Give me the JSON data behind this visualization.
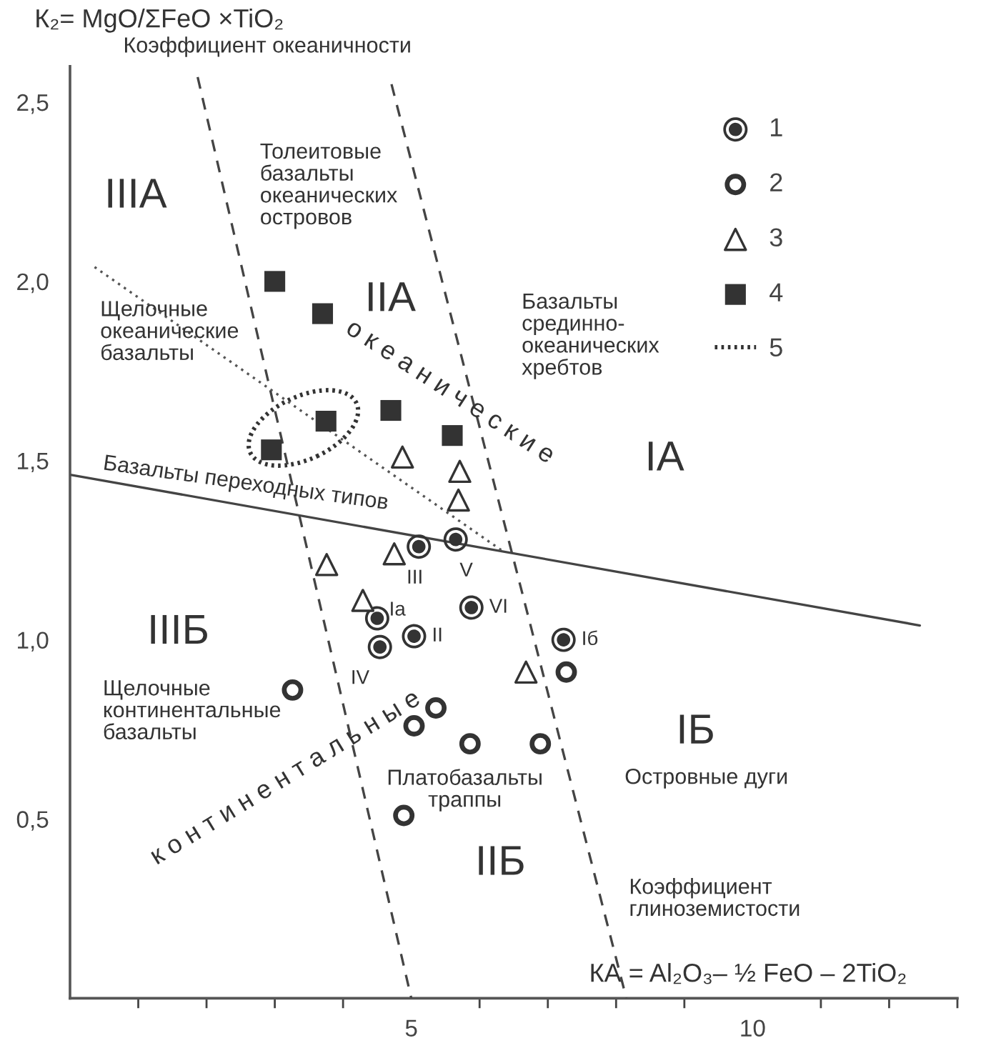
{
  "chart_data": {
    "type": "scatter",
    "ylabel": "К₂= MgO/ΣFeO ×TiO₂",
    "xlabel": "КА = Al₂O₃– ½ FeO – 2TiO₂",
    "xlim": [
      0,
      13
    ],
    "ylim": [
      0,
      2.6
    ],
    "xticks": [
      {
        "value": 1,
        "label": null
      },
      {
        "value": 2,
        "label": null
      },
      {
        "value": 3,
        "label": null
      },
      {
        "value": 4,
        "label": null
      },
      5,
      {
        "value": 6,
        "label": null
      },
      {
        "value": 7,
        "label": null
      },
      {
        "value": 8,
        "label": null
      },
      {
        "value": 9,
        "label": null
      },
      10,
      {
        "value": 11,
        "label": null
      },
      {
        "value": 12,
        "label": null
      },
      {
        "value": 13,
        "label": null
      }
    ],
    "yticks": [
      {
        "value": 0.5,
        "label": "0,5"
      },
      {
        "value": 1.0,
        "label": "1,0"
      },
      {
        "value": 1.5,
        "label": "1,5"
      },
      {
        "value": 2.0,
        "label": "2,0"
      },
      {
        "value": 2.5,
        "label": "2,5"
      }
    ],
    "grid": false,
    "legend": "top right",
    "series": [
      {
        "name": "1",
        "marker": "circle_dot",
        "color": "#333333",
        "x": [
          5.11,
          5.65,
          4.5,
          5.04,
          4.54,
          5.88,
          7.23
        ],
        "values": [
          1.26,
          1.28,
          1.06,
          1.01,
          0.98,
          1.09,
          1.0
        ],
        "value_labels": [
          "III",
          "V",
          "Ia",
          "II",
          "IV",
          "VI",
          "Iб"
        ]
      },
      {
        "name": "2",
        "marker": "circle",
        "color": "#333333",
        "x": [
          3.26,
          5.36,
          5.04,
          5.86,
          4.89,
          7.27,
          6.89
        ],
        "values": [
          0.86,
          0.81,
          0.76,
          0.71,
          0.51,
          0.91,
          0.71
        ]
      },
      {
        "name": "3",
        "marker": "triangle",
        "color": "#333333",
        "x": [
          4.87,
          5.71,
          5.69,
          4.75,
          3.76,
          4.29,
          6.68
        ],
        "values": [
          1.51,
          1.47,
          1.39,
          1.24,
          1.21,
          1.11,
          0.91
        ]
      },
      {
        "name": "4",
        "marker": "square",
        "color": "#333333",
        "x": [
          3.0,
          3.7,
          3.75,
          4.7,
          5.6,
          2.95
        ],
        "values": [
          2.0,
          1.91,
          1.61,
          1.64,
          1.57,
          1.53
        ]
      },
      {
        "name": "5",
        "type": "line",
        "line_style": "dotted",
        "color": "#333333"
      },
      {
        "type": "line",
        "line_style": "solid",
        "color": "#444444",
        "x": [
          0.02,
          12.45
        ],
        "values": [
          1.46,
          1.04
        ]
      },
      {
        "type": "line",
        "line_style": "dashed",
        "color": "#444444",
        "x": [
          1.87,
          5.0
        ],
        "values": [
          2.57,
          0
        ]
      },
      {
        "type": "line",
        "line_style": "dashed",
        "color": "#444444",
        "x": [
          4.71,
          8.15
        ],
        "values": [
          2.55,
          0
        ]
      },
      {
        "type": "line",
        "line_style": "dotted",
        "color": "#555555",
        "x": [
          0.36,
          6.32
        ],
        "values": [
          2.04,
          1.25
        ]
      }
    ],
    "annotations": [
      "Коэффициент океаничности",
      "IIIA",
      "IIA",
      "IA",
      "IIIБ",
      "IIБ",
      "IБ",
      "Толеитовые\nбазальты\nокеанических\nостровов",
      "Базальты\nсрединно-\nокеанических\nхребтов",
      "Щелочные\nокеанические\nбазальты",
      "Базальты переходных типов",
      "Щелочные\nконтинентальные\nбазальты",
      "Платобазальты\nтраппы",
      "Островные дуги",
      "Коэффициент\nглиноземистости",
      "о к е а н и ч е с к и е",
      "к о н т и н е н т а л ь н ы е"
    ]
  }
}
